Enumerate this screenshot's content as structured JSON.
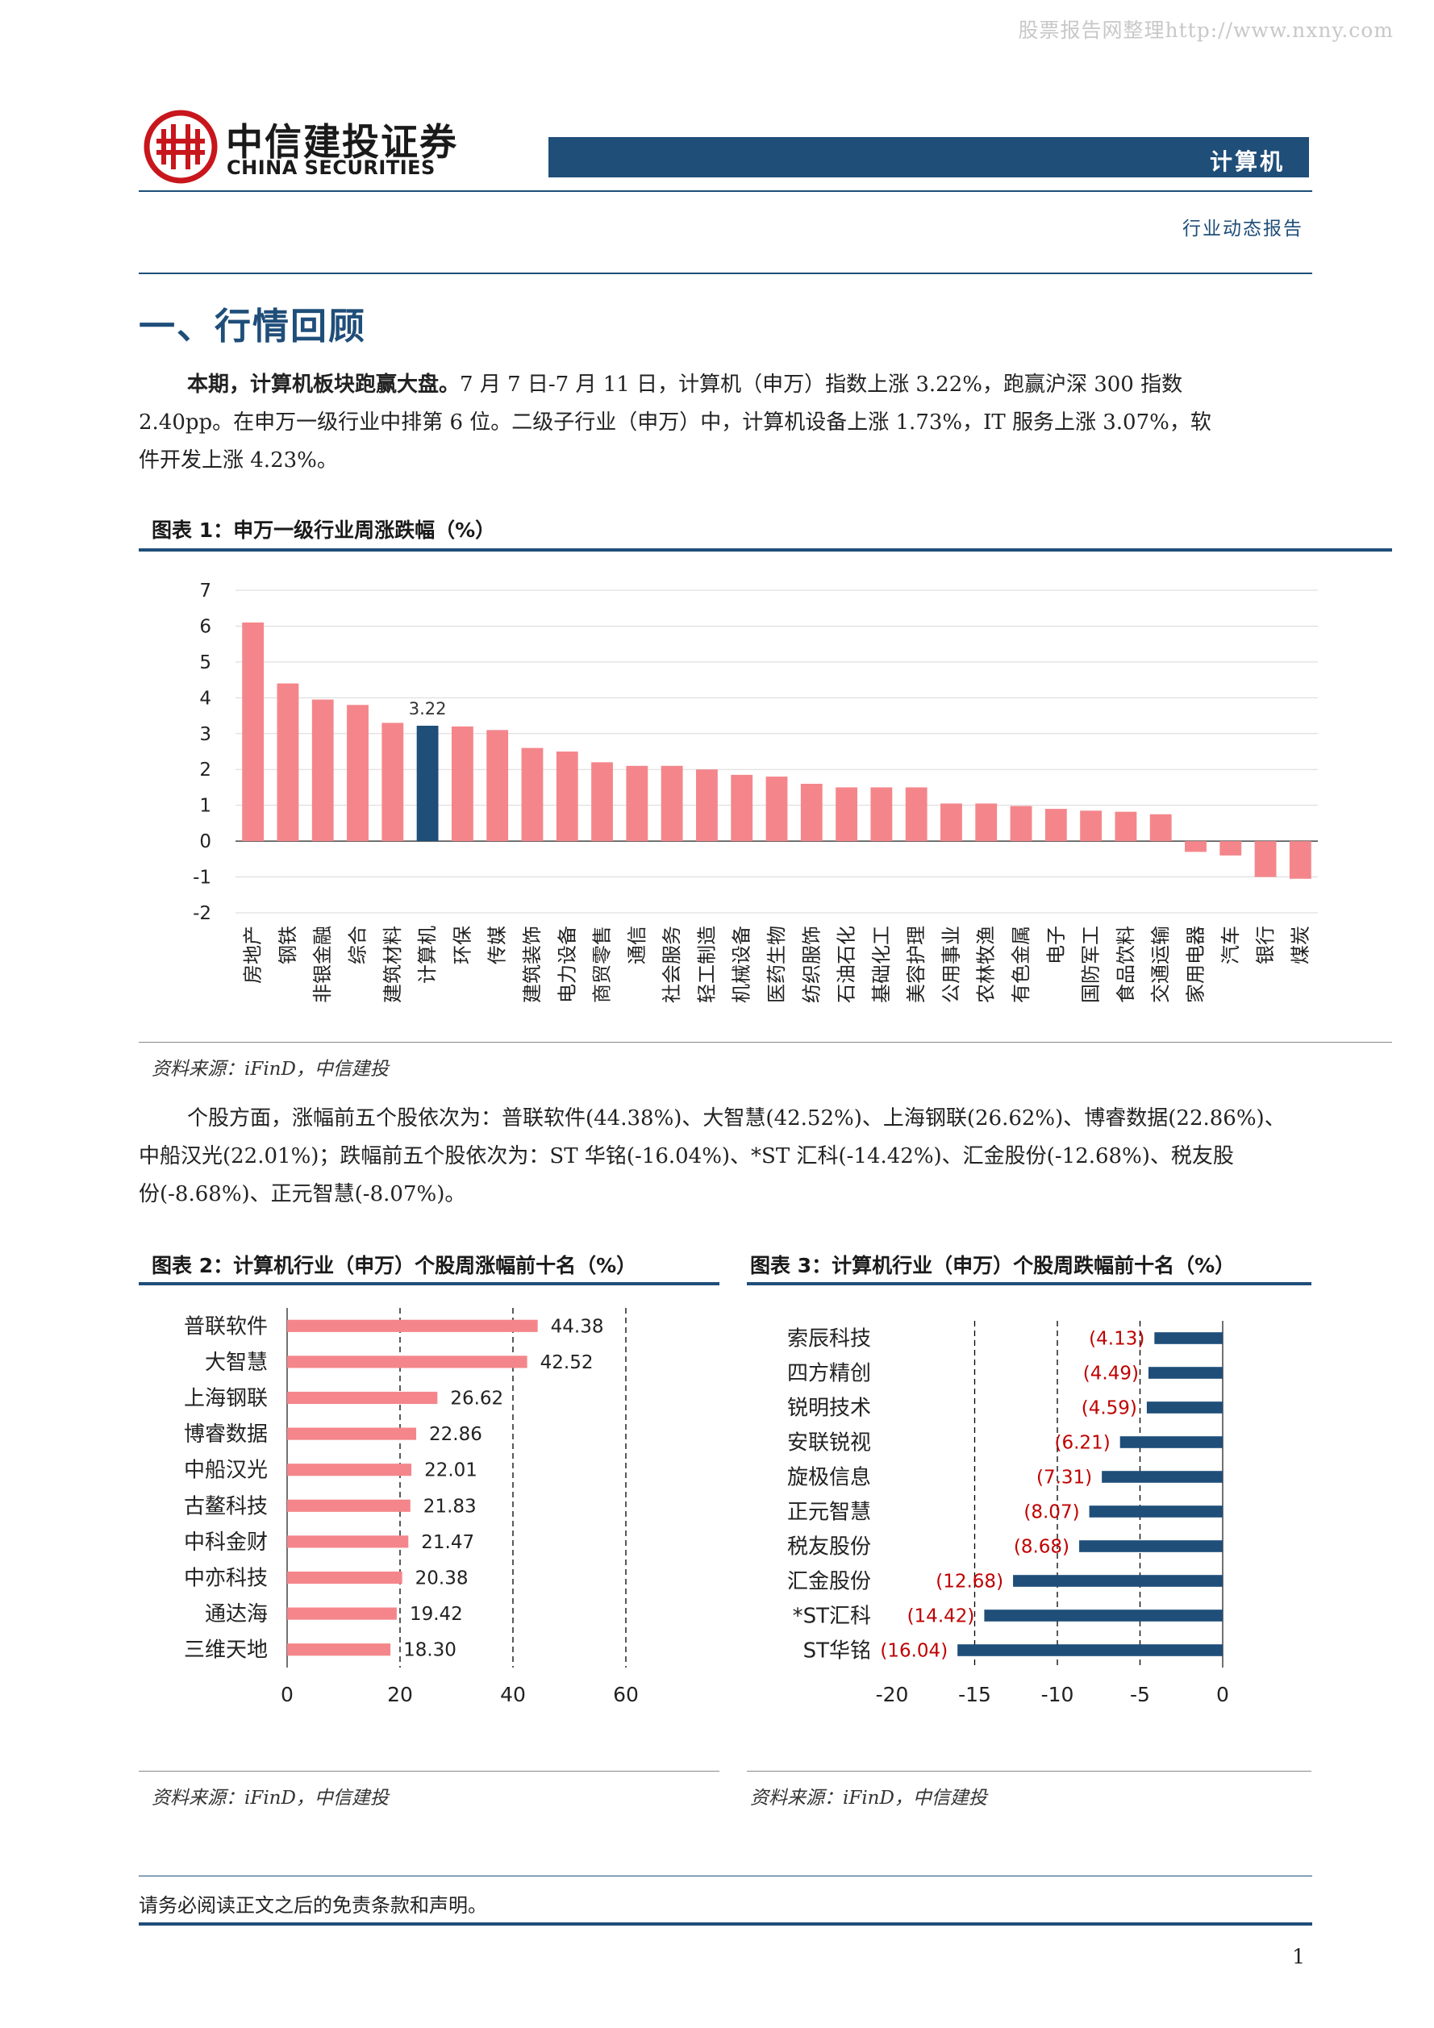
{
  "header": {
    "watermark": "股票报告网整理http://www.nxny.com",
    "brand_cn": "中信建投证券",
    "brand_en": "CHINA SECURITIES",
    "industry": "计算机",
    "report_type": "行业动态报告",
    "accent_color": "#1f4e79",
    "logo_color": "#c8161d"
  },
  "section": {
    "title": "一、行情回顾"
  },
  "intro": {
    "lead": "本期，计算机板块跑赢大盘。",
    "line1": "7 月 7 日-7 月 11 日，计算机（申万）指数上涨 3.22%，跑赢沪深 300 指数",
    "line2": "2.40pp。在申万一级行业中排第 6 位。二级子行业（申万）中，计算机设备上涨 1.73%，IT 服务上涨 3.07%，软",
    "line3": "件开发上涨 4.23%。"
  },
  "stocks_text": {
    "line1": "个股方面，涨幅前五个股依次为：普联软件(44.38%)、大智慧(42.52%)、上海钢联(26.62%)、博睿数据(22.86%)、",
    "line2": "中船汉光(22.01%)；跌幅前五个股依次为：ST 华铭(-16.04%)、*ST 汇科(-14.42%)、汇金股份(-12.68%)、税友股",
    "line3": "份(-8.68%)、正元智慧(-8.07%)。"
  },
  "figures": {
    "fig1_title": "图表 1：申万一级行业周涨跌幅（%）",
    "fig2_title": "图表 2：计算机行业（申万）个股周涨幅前十名（%）",
    "fig3_title": "图表 3：计算机行业（申万）个股周跌幅前十名（%）",
    "source1": "资料来源：iFinD，中信建投",
    "source2": "资料来源：iFinD，中信建投",
    "source3": "资料来源：iFinD，中信建投"
  },
  "chart_data": [
    {
      "type": "bar",
      "title": "图表 1：申万一级行业周涨跌幅（%）",
      "categories": [
        "房地产",
        "钢铁",
        "非银金融",
        "综合",
        "建筑材料",
        "计算机",
        "环保",
        "传媒",
        "建筑装饰",
        "电力设备",
        "商贸零售",
        "通信",
        "社会服务",
        "轻工制造",
        "机械设备",
        "医药生物",
        "纺织服饰",
        "石油石化",
        "基础化工",
        "美容护理",
        "公用事业",
        "农林牧渔",
        "有色金属",
        "电子",
        "国防军工",
        "食品饮料",
        "交通运输",
        "家用电器",
        "汽车",
        "银行",
        "煤炭"
      ],
      "values": [
        6.1,
        4.4,
        3.95,
        3.8,
        3.3,
        3.22,
        3.2,
        3.1,
        2.6,
        2.5,
        2.2,
        2.1,
        2.1,
        2.0,
        1.85,
        1.8,
        1.6,
        1.5,
        1.5,
        1.5,
        1.05,
        1.05,
        0.98,
        0.9,
        0.85,
        0.82,
        0.75,
        -0.3,
        -0.4,
        -1.0,
        -1.05
      ],
      "highlight": "计算机",
      "data_labels": {
        "计算机": "3.22"
      },
      "ylim": [
        -2,
        7
      ],
      "yticks": [
        "7",
        "6",
        "5",
        "4",
        "3",
        "2",
        "1",
        "0",
        "-1",
        "-2"
      ],
      "colors": {
        "bar": "#f4868b",
        "highlight": "#1f4e79"
      },
      "grid": true
    },
    {
      "type": "bar",
      "orientation": "horizontal",
      "title": "图表 2：计算机行业（申万）个股周涨幅前十名（%）",
      "categories": [
        "普联软件",
        "大智慧",
        "上海钢联",
        "博睿数据",
        "中船汉光",
        "古鳌科技",
        "中科金财",
        "中亦科技",
        "通达海",
        "三维天地"
      ],
      "values": [
        44.38,
        42.52,
        26.62,
        22.86,
        22.01,
        21.83,
        21.47,
        20.38,
        19.42,
        18.3
      ],
      "labels": [
        "44.38",
        "42.52",
        "26.62",
        "22.86",
        "22.01",
        "21.83",
        "21.47",
        "20.38",
        "19.42",
        "18.30"
      ],
      "xlim": [
        0,
        60
      ],
      "xticks": [
        "0",
        "20",
        "40",
        "60"
      ],
      "colors": {
        "bar": "#f4868b"
      }
    },
    {
      "type": "bar",
      "orientation": "horizontal",
      "title": "图表 3：计算机行业（申万）个股周跌幅前十名（%）",
      "categories": [
        "索辰科技",
        "四方精创",
        "锐明技术",
        "安联锐视",
        "旋极信息",
        "正元智慧",
        "税友股份",
        "汇金股份",
        "*ST汇科",
        "ST华铭"
      ],
      "values": [
        -4.13,
        -4.49,
        -4.59,
        -6.21,
        -7.31,
        -8.07,
        -8.68,
        -12.68,
        -14.42,
        -16.04
      ],
      "labels": [
        "(4.13)",
        "(4.49)",
        "(4.59)",
        "(6.21)",
        "(7.31)",
        "(8.07)",
        "(8.68)",
        "(12.68)",
        "(14.42)",
        "(16.04)"
      ],
      "xlim": [
        -20,
        0
      ],
      "xticks": [
        "-20",
        "-15",
        "-10",
        "-5",
        "0"
      ],
      "colors": {
        "bar": "#1f4e79",
        "label": "#c00000"
      }
    }
  ],
  "footer": {
    "disclaimer": "请务必阅读正文之后的免责条款和声明。",
    "page_number": "1"
  }
}
